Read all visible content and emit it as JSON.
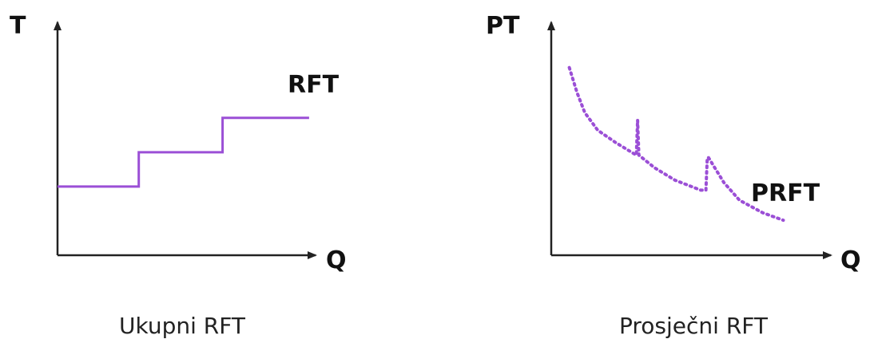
{
  "colors": {
    "series": "#9b4fd6",
    "axis": "#222222"
  },
  "chart_data": [
    {
      "type": "line",
      "title": "Ukupni RFT",
      "xlabel": "Q",
      "ylabel": "T",
      "grid": false,
      "series": [
        {
          "name": "RFT",
          "style": "solid",
          "x": [
            0,
            3.1,
            3.1,
            6.3,
            6.3,
            9.6
          ],
          "y": [
            2.6,
            2.6,
            3.9,
            3.9,
            5.2,
            5.2
          ]
        }
      ],
      "xlim": [
        0,
        10
      ],
      "ylim": [
        0,
        9
      ]
    },
    {
      "type": "line",
      "title": "Prosječni RFT",
      "xlabel": "Q",
      "ylabel": "PT",
      "grid": false,
      "series": [
        {
          "name": "PRFT",
          "style": "dotted",
          "x": [
            0.7,
            1.0,
            1.3,
            1.8,
            2.5,
            3.3,
            3.35,
            3.4,
            4.0,
            4.8,
            5.8,
            6.0,
            6.05,
            6.1,
            6.7,
            7.3,
            8.2,
            9.0
          ],
          "y": [
            7.5,
            6.5,
            5.7,
            5.0,
            4.5,
            4.0,
            5.4,
            4.0,
            3.5,
            3.0,
            2.6,
            2.6,
            3.9,
            3.9,
            2.9,
            2.2,
            1.7,
            1.4
          ]
        }
      ],
      "xlim": [
        0,
        11
      ],
      "ylim": [
        0,
        9.5
      ]
    }
  ]
}
